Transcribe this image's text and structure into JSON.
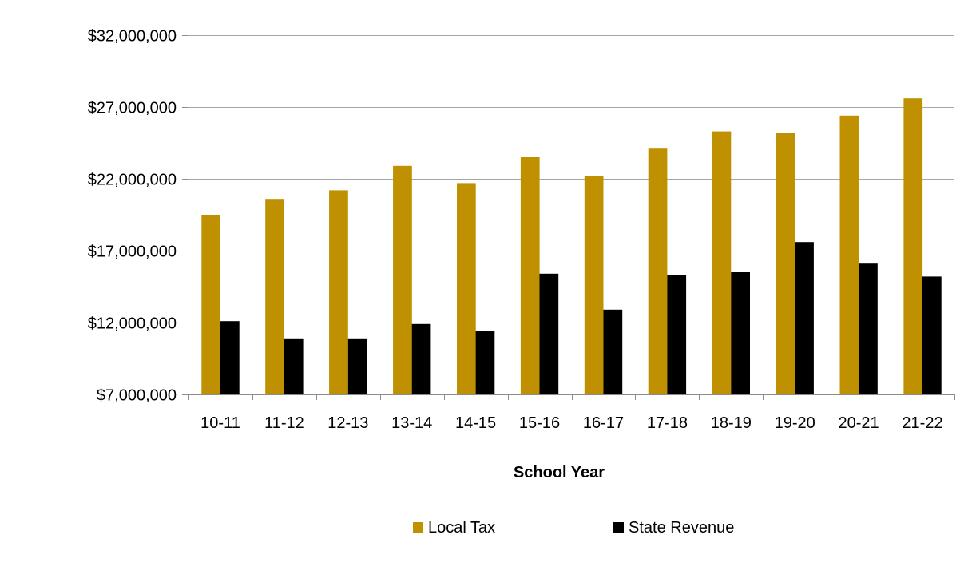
{
  "chart_data": {
    "type": "bar",
    "title": "",
    "xlabel": "School Year",
    "ylabel": "",
    "ylim": [
      7000000,
      32000000
    ],
    "y_ticks": [
      7000000,
      12000000,
      17000000,
      22000000,
      27000000,
      32000000
    ],
    "y_tick_labels": [
      "$7,000,000",
      "$12,000,000",
      "$17,000,000",
      "$22,000,000",
      "$27,000,000",
      "$32,000,000"
    ],
    "grid": true,
    "legend_position": "bottom",
    "categories": [
      "10-11",
      "11-12",
      "12-13",
      "13-14",
      "14-15",
      "15-16",
      "16-17",
      "17-18",
      "18-19",
      "19-20",
      "20-21",
      "21-22"
    ],
    "series": [
      {
        "name": "Local Tax",
        "color": "#bf9000",
        "values": [
          19500000,
          20600000,
          21200000,
          22900000,
          21700000,
          23500000,
          22200000,
          24100000,
          25300000,
          25200000,
          26400000,
          27600000
        ]
      },
      {
        "name": "State Revenue",
        "color": "#000000",
        "values": [
          12100000,
          10900000,
          10900000,
          11900000,
          11400000,
          15400000,
          12900000,
          15300000,
          15500000,
          17600000,
          16100000,
          15200000
        ]
      }
    ]
  }
}
